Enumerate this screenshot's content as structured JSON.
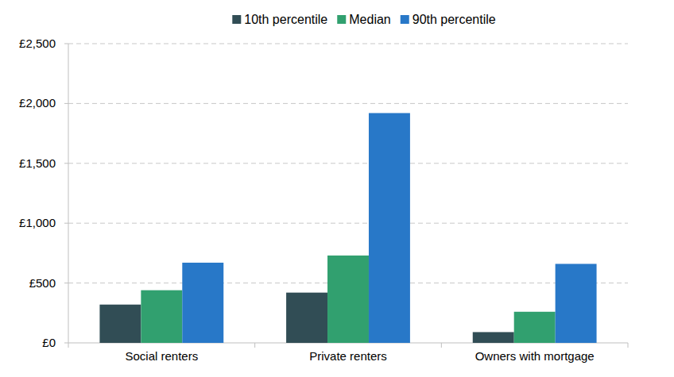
{
  "chart_data": {
    "type": "bar",
    "categories": [
      "Social renters",
      "Private renters",
      "Owners with mortgage"
    ],
    "series": [
      {
        "name": "10th percentile",
        "color": "#314d55",
        "values": [
          320,
          420,
          90
        ]
      },
      {
        "name": "Median",
        "color": "#31a06f",
        "values": [
          440,
          730,
          260
        ]
      },
      {
        "name": "90th percentile",
        "color": "#2878c8",
        "values": [
          670,
          1920,
          660
        ]
      }
    ],
    "ylim": [
      0,
      2500
    ],
    "yticks": [
      {
        "value": 0,
        "label": "£0"
      },
      {
        "value": 500,
        "label": "£500"
      },
      {
        "value": 1000,
        "label": "£1,000"
      },
      {
        "value": 1500,
        "label": "£1,500"
      },
      {
        "value": 2000,
        "label": "£2,000"
      },
      {
        "value": 2500,
        "label": "£2,500"
      }
    ],
    "grid": true,
    "legend": "top"
  }
}
